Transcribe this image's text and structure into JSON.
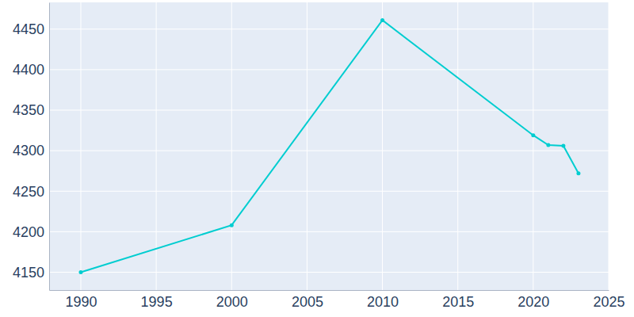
{
  "chart_data": {
    "type": "line",
    "x": [
      1990,
      2000,
      2010,
      2020,
      2021,
      2022,
      2023
    ],
    "values": [
      4150,
      4208,
      4461,
      4319,
      4307,
      4306,
      4272
    ],
    "color": "#00cdd0",
    "marker": "circle",
    "xlim": [
      1987.9,
      2025
    ],
    "xticks": [
      1990,
      1995,
      2000,
      2005,
      2010,
      2015,
      2020,
      2025
    ],
    "ylim": [
      4128,
      4483
    ],
    "yticks": [
      4150,
      4200,
      4250,
      4300,
      4350,
      4400,
      4450
    ],
    "grid": true
  }
}
